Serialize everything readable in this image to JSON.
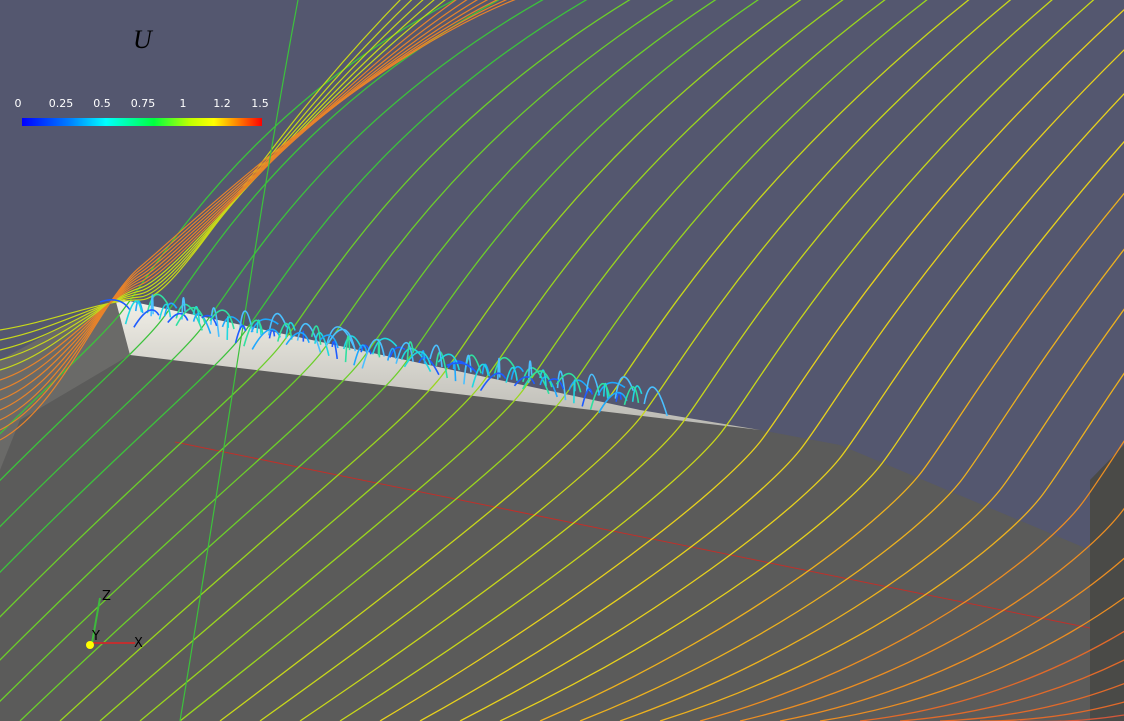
{
  "colorbar": {
    "title": "U",
    "labels": [
      "0",
      "0.25",
      "0.5",
      "0.75",
      "1",
      "1.2",
      "1.5"
    ]
  },
  "axes": {
    "z": "Z",
    "y": "Y",
    "x": "X"
  }
}
